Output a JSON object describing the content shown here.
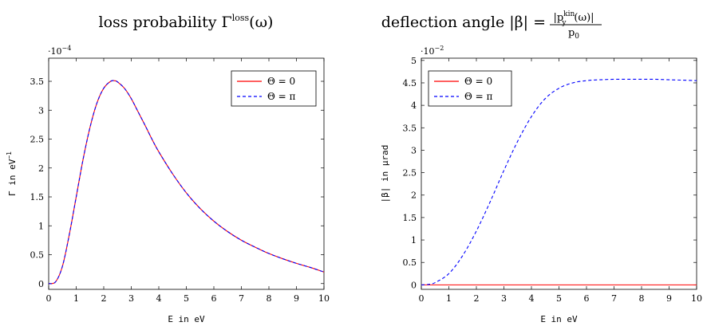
{
  "chart_data": [
    {
      "type": "line",
      "title_text": "loss probability Γ",
      "title_sup": "loss",
      "title_tail": "(ω)",
      "xlabel": "E in eV",
      "ylabel": "Γ in eV",
      "ylabel_sup": "−1",
      "scale_text": "·10",
      "scale_exp": "−4",
      "xlim": [
        0,
        10
      ],
      "ylim": [
        -0.1,
        3.9
      ],
      "xticks": [
        0,
        1,
        2,
        3,
        4,
        5,
        6,
        7,
        8,
        9,
        10
      ],
      "yticks": [
        0,
        0.5,
        1,
        1.5,
        2,
        2.5,
        3,
        3.5
      ],
      "legend_position": "top-right",
      "x": [
        0,
        0.25,
        0.5,
        0.75,
        1,
        1.25,
        1.5,
        1.75,
        2,
        2.25,
        2.4,
        2.5,
        2.75,
        3,
        3.25,
        3.5,
        3.75,
        4,
        4.5,
        5,
        5.5,
        6,
        6.5,
        7,
        7.5,
        8,
        8.5,
        9,
        9.5,
        10
      ],
      "series": [
        {
          "name": "Θ = 0",
          "color": "#ff0000",
          "dash": "solid",
          "values": [
            0,
            0.03,
            0.3,
            0.85,
            1.5,
            2.15,
            2.7,
            3.12,
            3.38,
            3.5,
            3.51,
            3.49,
            3.38,
            3.2,
            2.97,
            2.74,
            2.5,
            2.28,
            1.9,
            1.57,
            1.3,
            1.08,
            0.9,
            0.75,
            0.63,
            0.52,
            0.43,
            0.35,
            0.28,
            0.2
          ]
        },
        {
          "name": "Θ = π",
          "color": "#0000ff",
          "dash": "dashed",
          "values": [
            0,
            0.03,
            0.3,
            0.85,
            1.5,
            2.15,
            2.7,
            3.12,
            3.38,
            3.5,
            3.51,
            3.49,
            3.38,
            3.2,
            2.97,
            2.74,
            2.5,
            2.28,
            1.9,
            1.57,
            1.3,
            1.08,
            0.9,
            0.75,
            0.63,
            0.52,
            0.43,
            0.35,
            0.28,
            0.2
          ]
        }
      ]
    },
    {
      "type": "line",
      "title_text": "deflection angle |β| =",
      "title_num": "|p",
      "title_num_sup": "kin",
      "title_num_sub": "y",
      "title_num_tail": "(ω)|",
      "title_den": "p",
      "title_den_sub": "0",
      "xlabel": "E in eV",
      "ylabel": "|β| in μrad",
      "scale_text": "·10",
      "scale_exp": "−2",
      "xlim": [
        0,
        10
      ],
      "ylim": [
        -0.1,
        5.05
      ],
      "xticks": [
        0,
        1,
        2,
        3,
        4,
        5,
        6,
        7,
        8,
        9,
        10
      ],
      "yticks": [
        0,
        0.5,
        1,
        1.5,
        2,
        2.5,
        3,
        3.5,
        4,
        4.5,
        5
      ],
      "legend_position": "top-left",
      "x": [
        0,
        0.25,
        0.5,
        1,
        1.5,
        2,
        2.5,
        3,
        3.5,
        4,
        4.5,
        5,
        5.5,
        6,
        6.5,
        7,
        7.5,
        8,
        8.5,
        9,
        9.5,
        10
      ],
      "series": [
        {
          "name": "Θ = 0",
          "color": "#ff0000",
          "dash": "solid",
          "values": [
            0,
            0,
            0,
            0,
            0,
            0,
            0,
            0,
            0,
            0,
            0,
            0,
            0,
            0,
            0,
            0,
            0,
            0,
            0,
            0,
            0,
            0
          ]
        },
        {
          "name": "Θ = π",
          "color": "#0000ff",
          "dash": "dashed",
          "values": [
            0,
            0.01,
            0.05,
            0.25,
            0.65,
            1.2,
            1.85,
            2.55,
            3.2,
            3.75,
            4.15,
            4.38,
            4.5,
            4.55,
            4.57,
            4.58,
            4.58,
            4.58,
            4.58,
            4.57,
            4.56,
            4.55
          ]
        }
      ]
    }
  ]
}
